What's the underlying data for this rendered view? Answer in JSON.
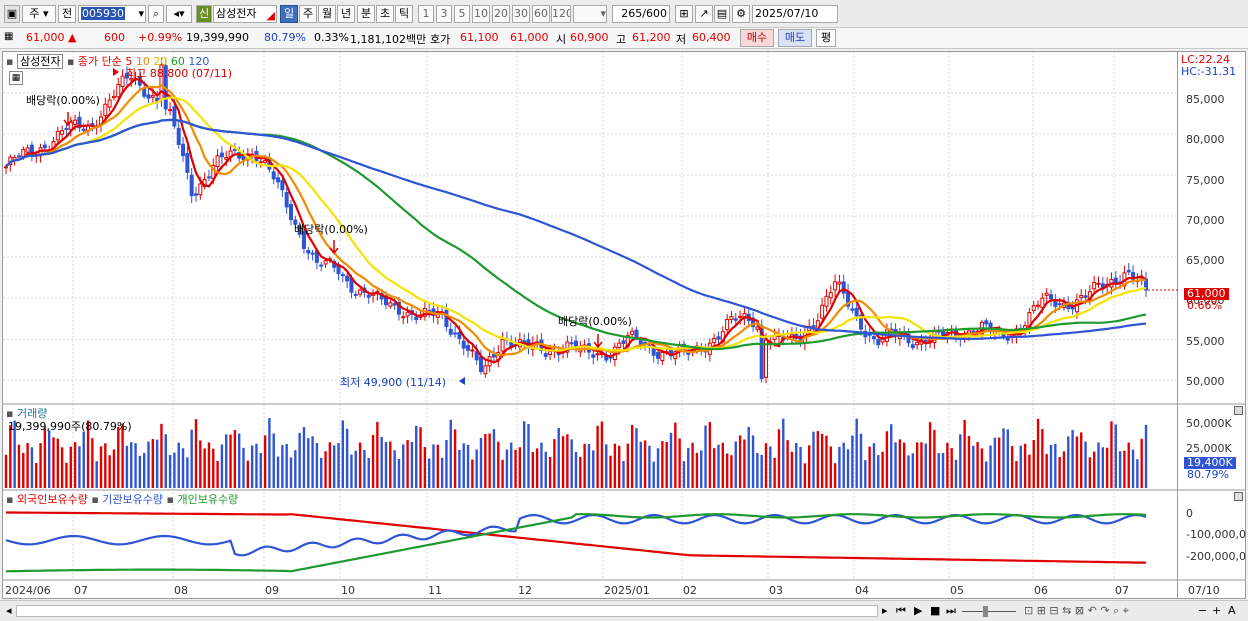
{
  "toolbar": {
    "period_dropdown": "주",
    "prev_label": "전",
    "stock_code": "005930",
    "badge_sin": "신",
    "stock_name": "삼성전자",
    "period_tabs": [
      "일",
      "주",
      "월",
      "년",
      "분",
      "초",
      "틱"
    ],
    "period_selected": "일",
    "interval_buttons": [
      "1",
      "3",
      "5",
      "10",
      "20",
      "30",
      "60",
      "120"
    ],
    "count": "265",
    "count_max": "/600",
    "date": "2025/07/10"
  },
  "quote": {
    "price": "61,000",
    "change": "600",
    "change_pct": "+0.99%",
    "volume": "19,399,990",
    "vol_ratio": "80.79%",
    "turnover_pct": "0.33%",
    "amount": "1,181,102백만",
    "ask_label": "호가",
    "ask": "61,100",
    "bid": "61,000",
    "open_label": "시",
    "open": "60,900",
    "high_label": "고",
    "high": "61,200",
    "low_label": "저",
    "low": "60,400",
    "buy_button": "매수",
    "sell_button": "매도",
    "eval_button": "평"
  },
  "price_panel": {
    "title": "삼성전자",
    "ma_label": "종가 단순",
    "ma_periods": [
      "5",
      "10",
      "20",
      "60",
      "120"
    ],
    "ma_colors": [
      "#e00000",
      "#f08c00",
      "#f5e400",
      "#1e9a2e",
      "#2f55d4"
    ],
    "lc_label": "LC:22.24",
    "hc_label": "HC:-31.31",
    "high_annotation": "최고 88,800 (07/11)",
    "low_annotation": "최저 49,900 (11/14)",
    "dividend_labels": [
      "배당락(0.00%)",
      "배당락(0.00%)",
      "배당락(0.00%)"
    ],
    "current_price_tag": "61,000",
    "current_pct_tag": "0.66%",
    "y_ticks": [
      "85,000",
      "80,000",
      "75,000",
      "70,000",
      "65,000",
      "60,000",
      "55,000",
      "50,000"
    ]
  },
  "volume_panel": {
    "title": "거래량",
    "value_label": "19,399,990주(80.79%)",
    "y_ticks": [
      "50,000K",
      "25,000K"
    ],
    "current_tag": "19,400K",
    "current_pct": "80.79%"
  },
  "holding_panel": {
    "legend": [
      "외국인보유수량",
      "기관보유수량",
      "개인보유수량"
    ],
    "legend_colors": [
      "#e00000",
      "#2f55d4",
      "#1e9a2e"
    ],
    "y_ticks": [
      "0",
      "-100,000,0",
      "-200,000,0"
    ]
  },
  "x_axis": {
    "labels": [
      "2024/06",
      "07",
      "08",
      "09",
      "10",
      "11",
      "12",
      "2025/01",
      "02",
      "03",
      "04",
      "05",
      "06",
      "07"
    ],
    "right_label": "07/10"
  },
  "chart_data": {
    "type": "candlestick",
    "period": "daily",
    "range": [
      "2024/06",
      "2025/07/10"
    ],
    "price_ylim": [
      48000,
      88800
    ],
    "price_series": [
      {
        "month": "2024/06",
        "close_approx": [
          76000,
          77500,
          79000,
          80500
        ]
      },
      {
        "month": "2024/07",
        "close_approx": [
          81000,
          84000,
          87000,
          85000,
          81500
        ]
      },
      {
        "month": "2024/08",
        "close_approx": [
          73000,
          76000,
          77500,
          78000
        ]
      },
      {
        "month": "2024/09",
        "close_approx": [
          74000,
          69000,
          64000,
          63500
        ]
      },
      {
        "month": "2024/10",
        "close_approx": [
          61000,
          59500,
          59000,
          57500
        ]
      },
      {
        "month": "2024/11",
        "close_approx": [
          58000,
          55000,
          50500,
          55500
        ]
      },
      {
        "month": "2024/12",
        "close_approx": [
          54000,
          53500,
          54500,
          53000
        ]
      },
      {
        "month": "2025/01",
        "close_approx": [
          53500,
          55000,
          54000,
          53500
        ]
      },
      {
        "month": "2025/02",
        "close_approx": [
          53000,
          55000,
          57000,
          57500
        ]
      },
      {
        "month": "2025/03",
        "close_approx": [
          55000,
          54500,
          57500,
          61500
        ]
      },
      {
        "month": "2025/04",
        "close_approx": [
          58000,
          54500,
          55500,
          55000
        ]
      },
      {
        "month": "2025/05",
        "close_approx": [
          55000,
          56000,
          56500,
          55000
        ]
      },
      {
        "month": "2025/06",
        "close_approx": [
          57000,
          59500,
          59500,
          60000
        ]
      },
      {
        "month": "2025/07",
        "close_approx": [
          61500,
          63500,
          61000
        ]
      }
    ],
    "high": {
      "value": 88800,
      "date": "07/11"
    },
    "low": {
      "value": 49900,
      "date": "11/14"
    },
    "last_close": 61000
  }
}
